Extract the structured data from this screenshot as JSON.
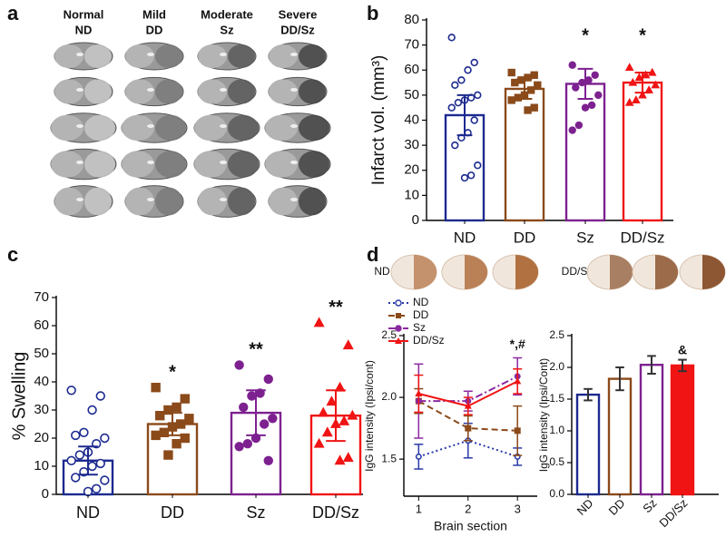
{
  "panel_labels": [
    "a",
    "b",
    "c",
    "d"
  ],
  "panel_a": {
    "headers": [
      [
        "Normal",
        "ND"
      ],
      [
        "Mild",
        "DD"
      ],
      [
        "Moderate",
        "Sz"
      ],
      [
        "Severe",
        "DD/Sz"
      ]
    ]
  },
  "panel_d_images": {
    "labels": [
      "ND",
      "DD/Sz"
    ]
  },
  "chart_data": [
    {
      "type": "bar",
      "ylabel": "Infarct vol. (mm³)",
      "categories": [
        "ND",
        "DD",
        "Sz",
        "DD/Sz"
      ],
      "values": [
        42,
        52.5,
        54.5,
        55
      ],
      "errors": [
        8,
        4,
        6,
        4
      ],
      "colors": [
        "#1c2a8f",
        "#8b4a1a",
        "#7d2190",
        "#f01414"
      ],
      "markers": [
        "circle-open",
        "square",
        "circle",
        "triangle"
      ],
      "points": [
        [
          73,
          63,
          60,
          56,
          54,
          50,
          49,
          48,
          47,
          45,
          40,
          35,
          33,
          30,
          22,
          18,
          17
        ],
        [
          59,
          58,
          57,
          56,
          55,
          54,
          52,
          50,
          49,
          48,
          45,
          44
        ],
        [
          62,
          58,
          56,
          55,
          53,
          50,
          46,
          45,
          38,
          36
        ],
        [
          61,
          59,
          58,
          57,
          55,
          54,
          52,
          50,
          48,
          47
        ]
      ],
      "annotations": [
        null,
        null,
        "*",
        "*"
      ],
      "ylim": [
        0,
        80
      ],
      "yticks": [
        0,
        10,
        20,
        30,
        40,
        50,
        60,
        70,
        80
      ]
    },
    {
      "type": "bar",
      "ylabel": "% Swelling",
      "categories": [
        "ND",
        "DD",
        "Sz",
        "DD/Sz"
      ],
      "values": [
        12,
        25,
        29,
        28
      ],
      "errors": [
        5,
        4,
        8,
        9
      ],
      "colors": [
        "#1c2a8f",
        "#8b4a1a",
        "#7d2190",
        "#f01414"
      ],
      "markers": [
        "circle-open",
        "square",
        "circle",
        "triangle"
      ],
      "points": [
        [
          37,
          35,
          30,
          22,
          21,
          20,
          18,
          15,
          14,
          12,
          11,
          10,
          8,
          6,
          5,
          2,
          1
        ],
        [
          38,
          34,
          31,
          30,
          28,
          27,
          25,
          24,
          22,
          21,
          20,
          18,
          14
        ],
        [
          46,
          41,
          36,
          35,
          31,
          27,
          25,
          20,
          18,
          17,
          12
        ],
        [
          61,
          53,
          38,
          33,
          29,
          28,
          26,
          25,
          22,
          18,
          13,
          12
        ]
      ],
      "annotations": [
        null,
        "*",
        "**",
        "**"
      ],
      "ylim": [
        0,
        70
      ],
      "yticks": [
        0,
        10,
        20,
        30,
        40,
        50,
        60,
        70
      ]
    },
    {
      "type": "line",
      "xlabel": "Brain section",
      "ylabel": "IgG intensity (Ipsi/cont)",
      "x": [
        1,
        2,
        3
      ],
      "series": [
        {
          "name": "ND",
          "color": "#2a3aa8",
          "dash": "dotted",
          "marker": "circle-open",
          "values": [
            1.52,
            1.65,
            1.52
          ],
          "errors": [
            0.1,
            0.14,
            0.07
          ]
        },
        {
          "name": "DD",
          "color": "#8b4a1a",
          "dash": "dashed",
          "marker": "square",
          "values": [
            1.97,
            1.75,
            1.73
          ],
          "errors": [
            0.1,
            0.1,
            0.2
          ]
        },
        {
          "name": "Sz",
          "color": "#8a2aa0",
          "dash": "dashdot",
          "marker": "circle",
          "values": [
            1.97,
            1.97,
            2.17
          ],
          "errors": [
            0.3,
            0.08,
            0.15
          ]
        },
        {
          "name": "DD/Sz",
          "color": "#f01414",
          "dash": "solid",
          "marker": "triangle",
          "values": [
            2.03,
            1.93,
            2.13
          ],
          "errors": [
            0.15,
            0.07,
            0.1
          ]
        }
      ],
      "annotations": [
        null,
        null,
        "*,#"
      ],
      "xlim": [
        0.7,
        3.4
      ],
      "xticks": [
        1,
        2,
        3
      ],
      "ylim": [
        1.2,
        2.5
      ],
      "yticks": [
        1.5,
        {
          "value": 2,
          "label": "2.0"
        },
        2.5
      ]
    },
    {
      "type": "bar",
      "ylabel": "IgG intensity (Ipsi/Cont)",
      "categories": [
        "ND",
        "DD",
        "Sz",
        "DD/Sz"
      ],
      "values": [
        1.57,
        1.82,
        2.04,
        2.03
      ],
      "errors": [
        0.09,
        0.18,
        0.14,
        0.09
      ],
      "colors": [
        "#1c2a8f",
        "#8b4a1a",
        "#7d2190",
        "#f01414"
      ],
      "fills": [
        "#ffffff",
        "#ffffff",
        "#ffffff",
        "#f01414"
      ],
      "annotations": [
        null,
        null,
        null,
        "&"
      ],
      "ylim": [
        0,
        2.5
      ],
      "yticks": [
        {
          "value": 0,
          "label": "0.0"
        },
        0.5,
        {
          "value": 1,
          "label": "1.0"
        },
        1.5,
        {
          "value": 2,
          "label": "2.0"
        },
        2.5
      ]
    }
  ]
}
